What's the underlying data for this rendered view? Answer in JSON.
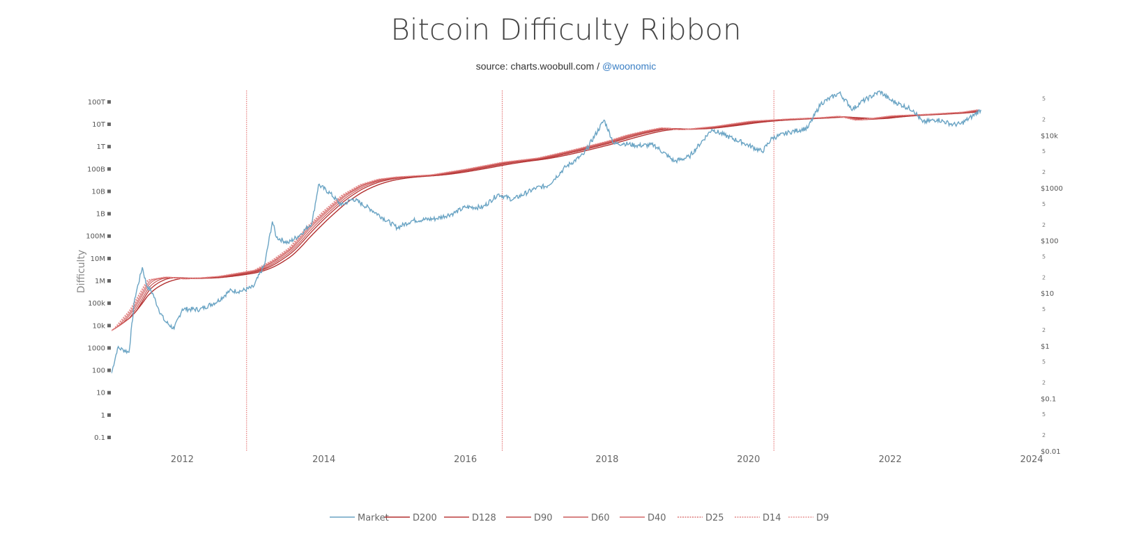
{
  "chart_data": {
    "type": "line",
    "title": "Bitcoin Difficulty Ribbon",
    "subtitle": {
      "source_prefix": "source: charts.woobull.com / ",
      "handle": "@woonomic"
    },
    "ylabel": "Difficulty",
    "y_scale": "log",
    "x_ticks": [
      "2012",
      "2014",
      "2016",
      "2018",
      "2020",
      "2022",
      "2024"
    ],
    "y_ticks": [
      "100T",
      "10T",
      "1T",
      "100B",
      "10B",
      "1B",
      "100M",
      "10M",
      "1M",
      "100k",
      "10k",
      "1000",
      "100",
      "10",
      "1",
      "0.1"
    ],
    "y_tick_values": [
      100000000000000.0,
      10000000000000.0,
      1000000000000.0,
      100000000000.0,
      10000000000.0,
      1000000000.0,
      100000000.0,
      10000000.0,
      1000000.0,
      100000.0,
      10000.0,
      1000.0,
      100,
      10,
      1,
      0.1
    ],
    "ylim": [
      0.1,
      100000000000000
    ],
    "xlim": [
      "2011-01-01",
      "2024-01-01"
    ],
    "y2_scale": "log",
    "y2_ticks": [
      "$10k",
      "$1000",
      "$100",
      "$10",
      "$1",
      "$0.1",
      "$0.01"
    ],
    "y2_tick_values": [
      10000,
      1000,
      100,
      10,
      1,
      0.1,
      0.01
    ],
    "y2_minor_ticks": [
      "5",
      "2"
    ],
    "y2lim": [
      0.01,
      100000
    ],
    "halving_dates": [
      "2012-11-28",
      "2016-07-09",
      "2020-05-11"
    ],
    "halving_color": "#e06060",
    "legend_position": "bottom",
    "legend": [
      "Market",
      "D200",
      "D128",
      "D90",
      "D60",
      "D40",
      "D25",
      "D14",
      "D9"
    ],
    "colors": {
      "Market": "#6aa4c4",
      "D200": "#b22f2f",
      "D128": "#bb3d3d",
      "D90": "#c44b4b",
      "D60": "#cc5a5a",
      "D40": "#d46868",
      "D25": "#dc7777",
      "D14": "#e38686",
      "D9": "#e99595"
    },
    "difficulty": {
      "x": [
        "2011-01-01",
        "2011-04-01",
        "2011-07-01",
        "2011-10-01",
        "2012-01-01",
        "2012-07-01",
        "2013-01-01",
        "2013-04-01",
        "2013-07-01",
        "2013-10-01",
        "2014-01-01",
        "2014-04-01",
        "2014-07-01",
        "2014-10-01",
        "2015-01-01",
        "2015-07-01",
        "2016-01-01",
        "2016-07-01",
        "2017-01-01",
        "2017-07-01",
        "2018-01-01",
        "2018-04-01",
        "2018-07-01",
        "2018-10-01",
        "2019-01-01",
        "2019-07-01",
        "2020-01-01",
        "2020-07-01",
        "2021-01-01",
        "2021-04-01",
        "2021-07-01",
        "2021-10-01",
        "2022-01-01",
        "2022-07-01",
        "2023-01-01",
        "2023-04-01"
      ],
      "values": [
        6000,
        50000,
        1100000,
        1500000,
        1200000,
        1600000,
        3000000,
        8000000,
        30000000,
        260000000,
        1500000000,
        7000000000,
        20000000000,
        35000000000,
        44000000000,
        55000000000,
        100000000000,
        200000000000,
        310000000000,
        710000000000,
        1800000000000,
        3200000000000,
        4900000000000,
        7000000000000,
        5600000000000,
        8000000000000,
        13700000000000,
        17000000000000,
        20000000000000,
        23000000000000,
        15000000000000,
        19000000000000,
        24000000000000,
        28000000000000,
        35000000000000,
        46000000000000
      ]
    },
    "series": [
      {
        "name": "Market",
        "axis": "right",
        "x": [
          "2011-01-01",
          "2011-02-01",
          "2011-03-01",
          "2011-04-01",
          "2011-05-01",
          "2011-06-09",
          "2011-07-01",
          "2011-08-01",
          "2011-09-01",
          "2011-10-01",
          "2011-11-20",
          "2012-01-01",
          "2012-04-01",
          "2012-07-01",
          "2012-09-01",
          "2012-11-01",
          "2013-01-01",
          "2013-03-01",
          "2013-04-10",
          "2013-05-01",
          "2013-07-01",
          "2013-09-01",
          "2013-11-01",
          "2013-12-04",
          "2014-02-01",
          "2014-04-01",
          "2014-06-01",
          "2014-09-01",
          "2015-01-14",
          "2015-04-01",
          "2015-08-01",
          "2015-11-01",
          "2016-01-01",
          "2016-04-01",
          "2016-06-18",
          "2016-09-01",
          "2017-01-01",
          "2017-03-01",
          "2017-06-01",
          "2017-09-01",
          "2017-12-17",
          "2018-02-06",
          "2018-04-01",
          "2018-06-01",
          "2018-09-01",
          "2018-12-15",
          "2019-03-01",
          "2019-06-26",
          "2019-09-01",
          "2019-12-01",
          "2020-03-12",
          "2020-05-01",
          "2020-08-01",
          "2020-11-01",
          "2021-01-08",
          "2021-04-14",
          "2021-06-22",
          "2021-08-01",
          "2021-11-10",
          "2022-01-01",
          "2022-05-01",
          "2022-06-18",
          "2022-09-01",
          "2022-11-21",
          "2023-01-01",
          "2023-03-01",
          "2023-04-14"
        ],
        "values": [
          0.3,
          0.9,
          0.85,
          0.75,
          8,
          31,
          14,
          10,
          5,
          3,
          2.1,
          5,
          4.9,
          7,
          11,
          11,
          13,
          35,
          230,
          115,
          90,
          130,
          220,
          1150,
          800,
          470,
          620,
          390,
          175,
          240,
          260,
          330,
          430,
          430,
          760,
          600,
          1000,
          1100,
          2500,
          4300,
          19500,
          6900,
          7000,
          6400,
          6500,
          3200,
          3900,
          13000,
          10000,
          7300,
          4900,
          8800,
          11500,
          13700,
          40000,
          64000,
          31000,
          42000,
          68000,
          47000,
          30000,
          17600,
          20000,
          16000,
          16500,
          23000,
          30500
        ]
      },
      {
        "name": "D200",
        "window": 200
      },
      {
        "name": "D128",
        "window": 128
      },
      {
        "name": "D90",
        "window": 90
      },
      {
        "name": "D60",
        "window": 60
      },
      {
        "name": "D40",
        "window": 40
      },
      {
        "name": "D25",
        "window": 25
      },
      {
        "name": "D14",
        "window": 14
      },
      {
        "name": "D9",
        "window": 9
      }
    ]
  }
}
